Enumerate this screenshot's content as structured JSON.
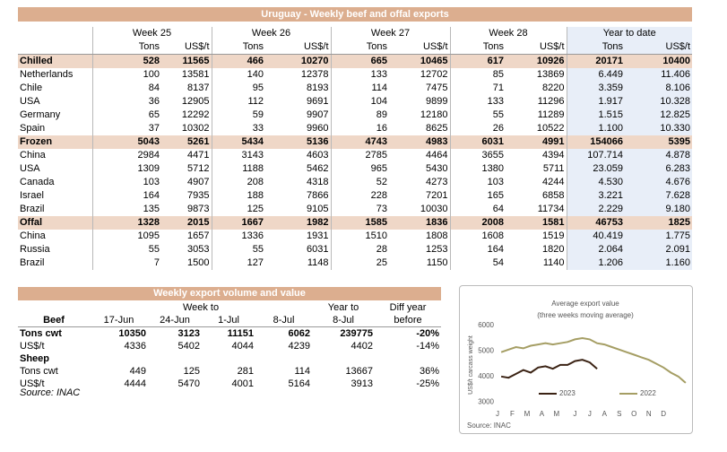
{
  "export_table": {
    "title": "Uruguay - Weekly beef and offal exports",
    "week_headers": [
      "Week 25",
      "Week 26",
      "Week 27",
      "Week 28",
      "Year to date"
    ],
    "sub_headers": [
      "Tons",
      "US$/t",
      "Tons",
      "US$/t",
      "Tons",
      "US$/t",
      "Tons",
      "US$/t",
      "Tons",
      "US$/t"
    ],
    "rows": [
      {
        "label": "Chilled",
        "highlight": true,
        "cells": [
          "528",
          "11565",
          "466",
          "10270",
          "665",
          "10465",
          "617",
          "10926",
          "20171",
          "10400"
        ]
      },
      {
        "label": "Netherlands",
        "cells": [
          "100",
          "13581",
          "140",
          "12378",
          "133",
          "12702",
          "85",
          "13869",
          "6.449",
          "11.406"
        ]
      },
      {
        "label": "Chile",
        "cells": [
          "84",
          "8137",
          "95",
          "8193",
          "114",
          "7475",
          "71",
          "8220",
          "3.359",
          "8.106"
        ]
      },
      {
        "label": "USA",
        "cells": [
          "36",
          "12905",
          "112",
          "9691",
          "104",
          "9899",
          "133",
          "11296",
          "1.917",
          "10.328"
        ]
      },
      {
        "label": "Germany",
        "cells": [
          "65",
          "12292",
          "59",
          "9907",
          "89",
          "12180",
          "55",
          "11289",
          "1.515",
          "12.825"
        ]
      },
      {
        "label": "Spain",
        "cells": [
          "37",
          "10302",
          "33",
          "9960",
          "16",
          "8625",
          "26",
          "10522",
          "1.100",
          "10.330"
        ]
      },
      {
        "label": "Frozen",
        "highlight": true,
        "cells": [
          "5043",
          "5261",
          "5434",
          "5136",
          "4743",
          "4983",
          "6031",
          "4991",
          "154066",
          "5395"
        ]
      },
      {
        "label": "China",
        "cells": [
          "2984",
          "4471",
          "3143",
          "4603",
          "2785",
          "4464",
          "3655",
          "4394",
          "107.714",
          "4.878"
        ]
      },
      {
        "label": "USA",
        "cells": [
          "1309",
          "5712",
          "1188",
          "5462",
          "965",
          "5430",
          "1380",
          "5711",
          "23.059",
          "6.283"
        ]
      },
      {
        "label": "Canada",
        "cells": [
          "103",
          "4907",
          "208",
          "4318",
          "52",
          "4273",
          "103",
          "4244",
          "4.530",
          "4.676"
        ]
      },
      {
        "label": "Israel",
        "cells": [
          "164",
          "7935",
          "188",
          "7866",
          "228",
          "7201",
          "165",
          "6858",
          "3.221",
          "7.628"
        ]
      },
      {
        "label": "Brazil",
        "cells": [
          "135",
          "9873",
          "125",
          "9105",
          "73",
          "10030",
          "64",
          "11734",
          "2.229",
          "9.180"
        ]
      },
      {
        "label": "Offal",
        "highlight": true,
        "cells": [
          "1328",
          "2015",
          "1667",
          "1982",
          "1585",
          "1836",
          "2008",
          "1581",
          "46753",
          "1825"
        ]
      },
      {
        "label": "China",
        "cells": [
          "1095",
          "1657",
          "1336",
          "1931",
          "1510",
          "1808",
          "1608",
          "1519",
          "40.419",
          "1.775"
        ]
      },
      {
        "label": "Russia",
        "cells": [
          "55",
          "3053",
          "55",
          "6031",
          "28",
          "1253",
          "164",
          "1820",
          "2.064",
          "2.091"
        ]
      },
      {
        "label": "Brazil",
        "cells": [
          "7",
          "1500",
          "127",
          "1148",
          "25",
          "1150",
          "54",
          "1140",
          "1.206",
          "1.160"
        ]
      }
    ]
  },
  "weekly_table": {
    "title": "Weekly export volume and value",
    "group_headers": [
      "Week to",
      "Year to",
      "Diff year"
    ],
    "columns": [
      "Beef",
      "17-Jun",
      "24-Jun",
      "1-Jul",
      "8-Jul",
      "8-Jul",
      "before"
    ],
    "rows": [
      [
        "Tons cwt",
        "10350",
        "3123",
        "11151",
        "6062",
        "239775",
        "-20%"
      ],
      [
        "US$/t",
        "4336",
        "5402",
        "4044",
        "4239",
        "4402",
        "-14%"
      ],
      [
        "Sheep"
      ],
      [
        "Tons cwt",
        "449",
        "125",
        "281",
        "114",
        "13667",
        "36%"
      ],
      [
        "US$/t",
        "4444",
        "5470",
        "4001",
        "5164",
        "3913",
        "-25%"
      ]
    ],
    "source": "Source: INAC"
  },
  "chart_data": {
    "type": "line",
    "title": "Average export value",
    "subtitle": "(three weeks moving average)",
    "y_label": "US$/t carcass weight",
    "source": "Source: INAC",
    "xlim": [
      0,
      52
    ],
    "xticks": [
      {
        "value": 0,
        "label": "J"
      },
      {
        "value": 4,
        "label": "F"
      },
      {
        "value": 8,
        "label": "M"
      },
      {
        "value": 12,
        "label": "A"
      },
      {
        "value": 16,
        "label": "M"
      },
      {
        "value": 21,
        "label": "J"
      },
      {
        "value": 25,
        "label": "J"
      },
      {
        "value": 29,
        "label": "A"
      },
      {
        "value": 33,
        "label": "S"
      },
      {
        "value": 37,
        "label": "O"
      },
      {
        "value": 41,
        "label": "N"
      },
      {
        "value": 45,
        "label": "D"
      }
    ],
    "ylim": [
      2800,
      6200
    ],
    "yticks": [
      3000,
      4000,
      5000,
      6000
    ],
    "series": [
      {
        "name": "2023",
        "color": "#3b2314",
        "x": [
          1,
          3,
          5,
          7,
          9,
          11,
          13,
          15,
          17,
          19,
          21,
          23,
          25,
          27
        ],
        "values": [
          4000,
          3950,
          4100,
          4250,
          4150,
          4350,
          4400,
          4300,
          4450,
          4450,
          4600,
          4650,
          4550,
          4300
        ]
      },
      {
        "name": "2022",
        "color": "#a59e64",
        "x": [
          1,
          3,
          5,
          7,
          9,
          11,
          13,
          15,
          17,
          19,
          21,
          23,
          25,
          27,
          29,
          31,
          33,
          35,
          37,
          39,
          41,
          43,
          45,
          47,
          49,
          51
        ],
        "values": [
          4950,
          5050,
          5150,
          5100,
          5200,
          5250,
          5300,
          5250,
          5300,
          5350,
          5450,
          5500,
          5450,
          5300,
          5250,
          5150,
          5050,
          4950,
          4850,
          4750,
          4650,
          4500,
          4350,
          4150,
          4000,
          3750
        ]
      }
    ]
  }
}
